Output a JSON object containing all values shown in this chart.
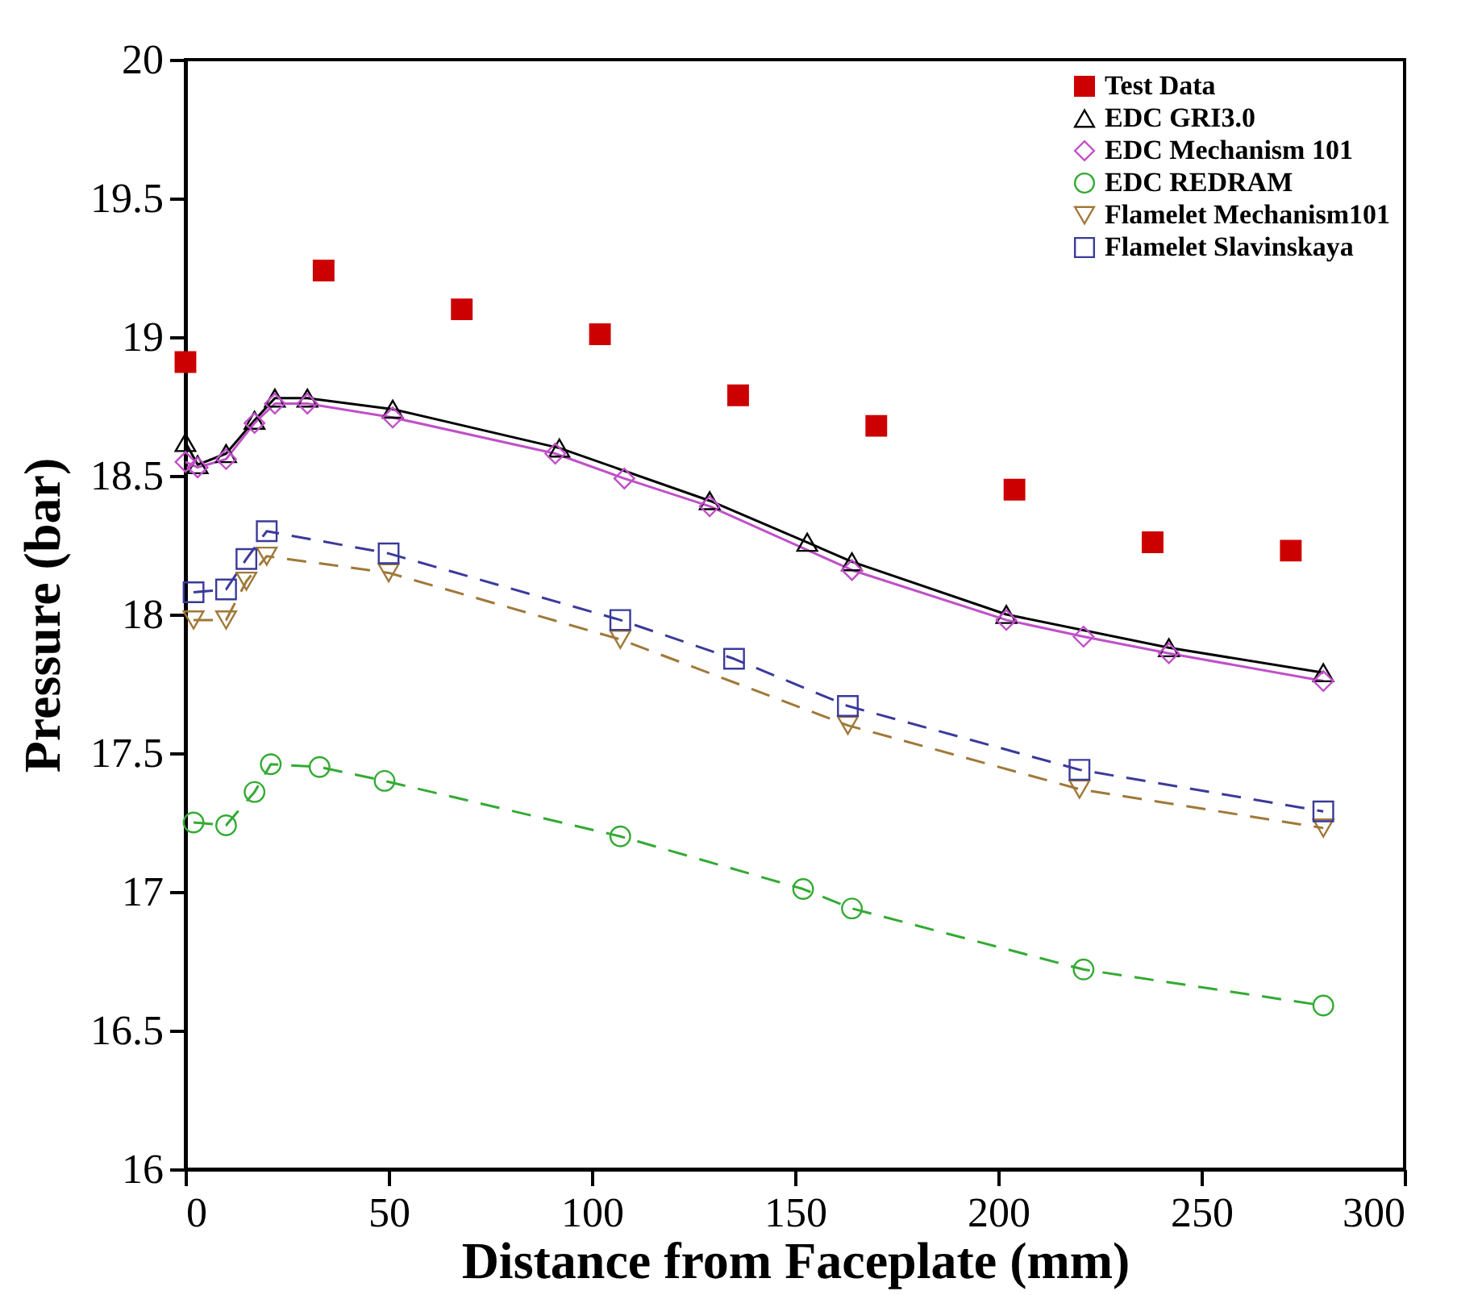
{
  "chart_data": {
    "type": "line",
    "xlabel": "Distance from Faceplate (mm)",
    "ylabel": "Pressure (bar)",
    "xlim": [
      0,
      300
    ],
    "xticks": [
      0,
      50,
      100,
      150,
      200,
      250,
      300
    ],
    "ylim": [
      16,
      20
    ],
    "yticks": [
      16,
      16.5,
      17,
      17.5,
      18,
      18.5,
      19,
      19.5,
      20
    ],
    "grid": false,
    "legend": "top right",
    "series": [
      {
        "name": "Test Data",
        "type": "scatter",
        "marker": "square",
        "color": "#cc0000",
        "x": [
          0,
          34,
          68,
          102,
          136,
          170,
          204,
          238,
          272
        ],
        "values": [
          18.91,
          19.24,
          19.1,
          19.01,
          18.79,
          18.68,
          18.45,
          18.26,
          18.23
        ]
      },
      {
        "name": "EDC GRI3.0",
        "marker": "triangle",
        "line_style": "solid",
        "color": "#000000",
        "x": [
          0,
          3,
          10,
          17,
          22,
          30,
          51,
          92,
          129,
          153,
          164,
          202,
          242,
          280
        ],
        "values": [
          18.62,
          18.54,
          18.58,
          18.7,
          18.78,
          18.78,
          18.74,
          18.6,
          18.41,
          18.26,
          18.19,
          18.0,
          17.88,
          17.79
        ]
      },
      {
        "name": "EDC Mechanism 101",
        "marker": "diamond",
        "line_style": "solid",
        "color": "#c050c8",
        "x": [
          0,
          3,
          10,
          17,
          22,
          30,
          51,
          91,
          108,
          129,
          164,
          202,
          221,
          242,
          280
        ],
        "values": [
          18.55,
          18.53,
          18.56,
          18.69,
          18.76,
          18.76,
          18.71,
          18.58,
          18.49,
          18.39,
          18.16,
          17.98,
          17.92,
          17.86,
          17.76
        ]
      },
      {
        "name": "EDC REDRAM",
        "marker": "circle",
        "line_style": "dashed",
        "color": "#33aa33",
        "x": [
          2,
          10,
          17,
          21,
          33,
          49,
          107,
          152,
          164,
          221,
          280
        ],
        "values": [
          17.25,
          17.24,
          17.36,
          17.46,
          17.45,
          17.4,
          17.2,
          17.01,
          16.94,
          16.72,
          16.59
        ]
      },
      {
        "name": "Flamelet Mechanism101",
        "marker": "triangle-down",
        "line_style": "dashed",
        "color": "#a07838",
        "x": [
          2,
          10,
          15,
          20,
          50,
          107,
          163,
          220,
          280
        ],
        "values": [
          17.98,
          17.98,
          18.12,
          18.21,
          18.15,
          17.91,
          17.6,
          17.37,
          17.23
        ]
      },
      {
        "name": "Flamelet Slavinskaya",
        "marker": "square",
        "line_style": "dashed",
        "color": "#3a3a9a",
        "x": [
          2,
          10,
          15,
          20,
          50,
          107,
          135,
          163,
          220,
          280
        ],
        "values": [
          18.08,
          18.09,
          18.2,
          18.3,
          18.22,
          17.98,
          17.84,
          17.67,
          17.44,
          17.29
        ]
      }
    ]
  }
}
